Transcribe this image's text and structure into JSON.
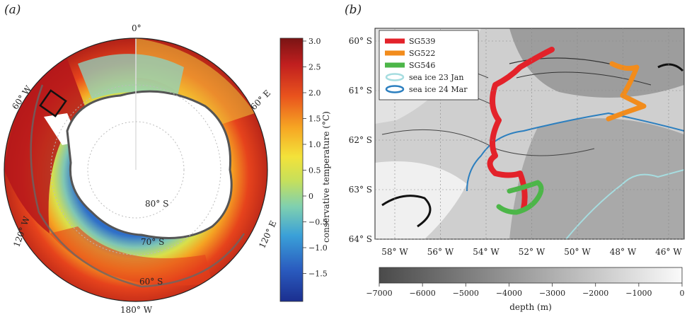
{
  "panel_a": {
    "label": "(a)",
    "lon_labels": [
      "0°",
      "60° E",
      "120° E",
      "180° W",
      "120° W",
      "60° W"
    ],
    "lat_labels": [
      "80° S",
      "70° S",
      "60° S"
    ],
    "colorbar": {
      "title": "conservative temperature (°C)",
      "ticks": [
        "3.0",
        "2.5",
        "2.0",
        "1.5",
        "1.0",
        "0.5",
        "0",
        "−0.5",
        "−1.0",
        "−1.5"
      ],
      "range": [
        -1.8,
        3.0
      ],
      "colors": [
        "#1b2f8f",
        "#2a5bbf",
        "#3aa0d8",
        "#7fd0b0",
        "#c7e05a",
        "#f3e23a",
        "#f6a623",
        "#e9531d",
        "#c11f1f",
        "#7a1414"
      ]
    }
  },
  "panel_b": {
    "label": "(b)",
    "lat_ticks": [
      "60° S",
      "61° S",
      "62° S",
      "63° S",
      "64° S"
    ],
    "lon_ticks": [
      "58° W",
      "56° W",
      "54° W",
      "52° W",
      "50° W",
      "48° W",
      "46° W"
    ],
    "legend": [
      {
        "label": "SG539",
        "color": "#e3222a"
      },
      {
        "label": "SG522",
        "color": "#f28c1c"
      },
      {
        "label": "SG546",
        "color": "#4cb648"
      },
      {
        "label": "sea ice 23 Jan",
        "color": "#a6dde0"
      },
      {
        "label": "sea ice 24 Mar",
        "color": "#2c7fbf"
      }
    ],
    "colorbar": {
      "title": "depth (m)",
      "ticks": [
        "−7000",
        "−6000",
        "−5000",
        "−4000",
        "−3000",
        "−2000",
        "−1000",
        "0"
      ]
    }
  }
}
